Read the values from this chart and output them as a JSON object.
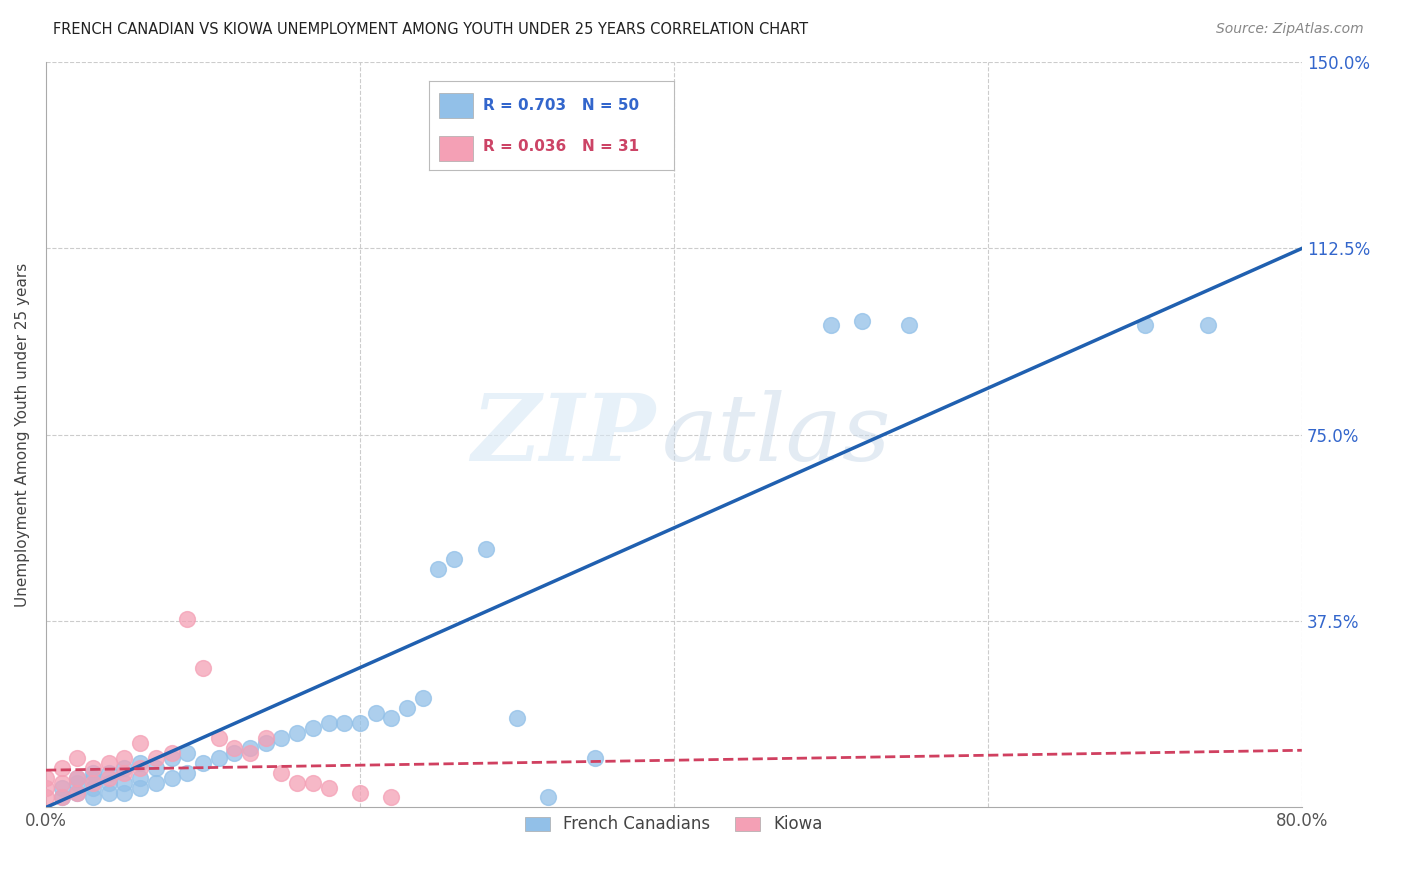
{
  "title": "FRENCH CANADIAN VS KIOWA UNEMPLOYMENT AMONG YOUTH UNDER 25 YEARS CORRELATION CHART",
  "source": "Source: ZipAtlas.com",
  "ylabel": "Unemployment Among Youth under 25 years",
  "xlim": [
    0.0,
    0.8
  ],
  "ylim": [
    0.0,
    1.5
  ],
  "ytick_vals": [
    0.0,
    0.375,
    0.75,
    1.125,
    1.5
  ],
  "ytick_labels": [
    "",
    "37.5%",
    "75.0%",
    "112.5%",
    "150.0%"
  ],
  "xtick_vals": [
    0.0,
    0.2,
    0.4,
    0.6,
    0.8
  ],
  "xtick_labels": [
    "0.0%",
    "",
    "",
    "",
    "80.0%"
  ],
  "blue_R": 0.703,
  "blue_N": 50,
  "pink_R": 0.036,
  "pink_N": 31,
  "blue_color": "#92C0E8",
  "pink_color": "#F4A0B5",
  "blue_line_color": "#2060B0",
  "pink_line_color": "#D04060",
  "watermark_zip": "ZIP",
  "watermark_atlas": "atlas",
  "legend_label_blue": "French Canadians",
  "legend_label_pink": "Kiowa",
  "blue_line_x0": 0.0,
  "blue_line_y0": 0.0,
  "blue_line_x1": 0.8,
  "blue_line_y1": 1.125,
  "pink_line_x0": 0.0,
  "pink_line_y0": 0.075,
  "pink_line_x1": 0.8,
  "pink_line_y1": 0.115,
  "blue_scatter_x": [
    0.01,
    0.01,
    0.02,
    0.02,
    0.02,
    0.03,
    0.03,
    0.03,
    0.03,
    0.04,
    0.04,
    0.04,
    0.05,
    0.05,
    0.05,
    0.06,
    0.06,
    0.06,
    0.07,
    0.07,
    0.08,
    0.08,
    0.09,
    0.09,
    0.1,
    0.11,
    0.12,
    0.13,
    0.14,
    0.15,
    0.16,
    0.17,
    0.18,
    0.19,
    0.2,
    0.21,
    0.22,
    0.23,
    0.24,
    0.25,
    0.26,
    0.28,
    0.3,
    0.32,
    0.35,
    0.5,
    0.52,
    0.55,
    0.7,
    0.74
  ],
  "blue_scatter_y": [
    0.02,
    0.04,
    0.03,
    0.05,
    0.06,
    0.02,
    0.04,
    0.06,
    0.07,
    0.03,
    0.05,
    0.07,
    0.03,
    0.05,
    0.08,
    0.04,
    0.06,
    0.09,
    0.05,
    0.08,
    0.06,
    0.1,
    0.07,
    0.11,
    0.09,
    0.1,
    0.11,
    0.12,
    0.13,
    0.14,
    0.15,
    0.16,
    0.17,
    0.17,
    0.17,
    0.19,
    0.18,
    0.2,
    0.22,
    0.48,
    0.5,
    0.52,
    0.18,
    0.02,
    0.1,
    0.97,
    0.98,
    0.97,
    0.97,
    0.97
  ],
  "pink_scatter_x": [
    0.0,
    0.0,
    0.0,
    0.01,
    0.01,
    0.01,
    0.02,
    0.02,
    0.02,
    0.03,
    0.03,
    0.04,
    0.04,
    0.05,
    0.05,
    0.06,
    0.06,
    0.07,
    0.08,
    0.09,
    0.1,
    0.11,
    0.12,
    0.13,
    0.14,
    0.15,
    0.16,
    0.17,
    0.18,
    0.2,
    0.22
  ],
  "pink_scatter_y": [
    0.02,
    0.04,
    0.06,
    0.02,
    0.05,
    0.08,
    0.03,
    0.06,
    0.1,
    0.05,
    0.08,
    0.06,
    0.09,
    0.07,
    0.1,
    0.08,
    0.13,
    0.1,
    0.11,
    0.38,
    0.28,
    0.14,
    0.12,
    0.11,
    0.14,
    0.07,
    0.05,
    0.05,
    0.04,
    0.03,
    0.02
  ]
}
